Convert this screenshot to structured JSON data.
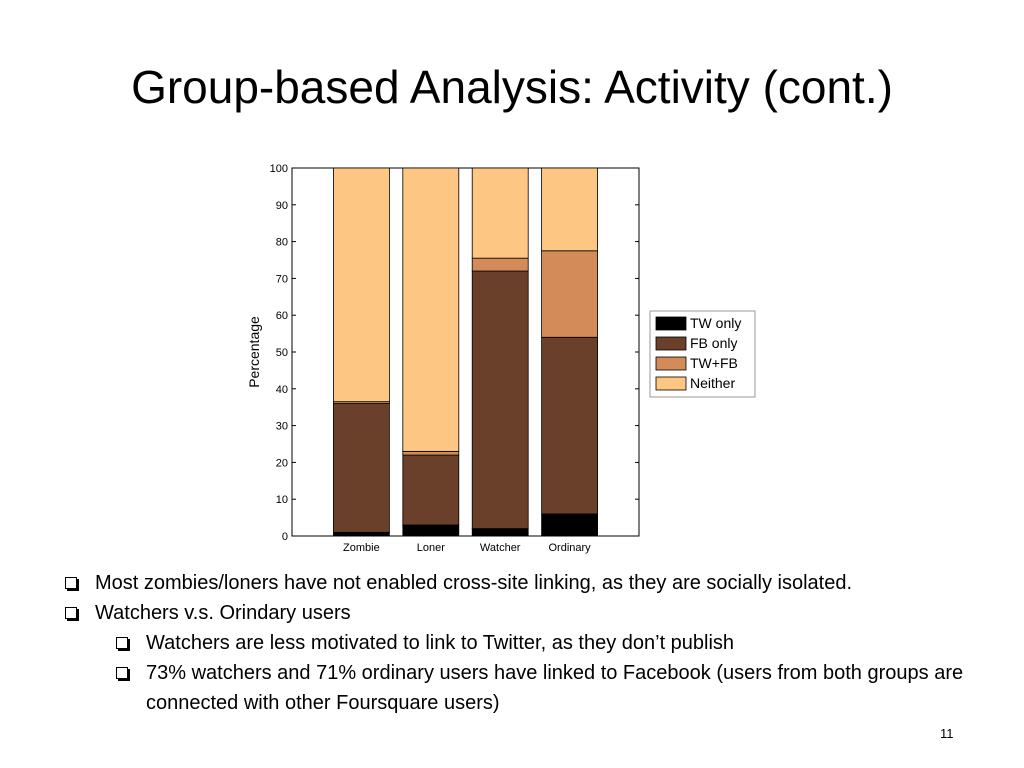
{
  "slide": {
    "title": "Group-based Analysis: Activity (cont.)",
    "page_number": "11"
  },
  "bullets": [
    {
      "text": "Most zombies/loners have not enabled cross-site linking, as they are socially isolated.",
      "level": 1
    },
    {
      "text": "Watchers v.s. Orindary users",
      "level": 1
    },
    {
      "text": "Watchers are less motivated to link to Twitter, as they don’t publish",
      "level": 2
    },
    {
      "text": "73% watchers and 71% ordinary users have linked to Facebook (users from both groups are connected with other Foursquare users)",
      "level": 2
    }
  ],
  "chart_data": {
    "type": "bar",
    "stacked": true,
    "categories": [
      "Zombie",
      "Loner",
      "Watcher",
      "Ordinary"
    ],
    "series": [
      {
        "name": "TW only",
        "color": "#000000",
        "values": [
          1,
          3,
          2,
          6
        ]
      },
      {
        "name": "FB only",
        "color": "#6b402b",
        "values": [
          35,
          19,
          70,
          48
        ]
      },
      {
        "name": "TW+FB",
        "color": "#d38b59",
        "values": [
          0.5,
          1,
          3.5,
          23.5
        ]
      },
      {
        "name": "Neither",
        "color": "#fdc683",
        "values": [
          63.5,
          77,
          24.5,
          22.5
        ]
      }
    ],
    "title": "",
    "xlabel": "",
    "ylabel": "Percentage",
    "ylim": [
      0,
      100
    ],
    "yticks": [
      "0",
      "10",
      "20",
      "30",
      "40",
      "50",
      "60",
      "70",
      "80",
      "90",
      "100"
    ],
    "grid": false,
    "legend_position": "right"
  }
}
